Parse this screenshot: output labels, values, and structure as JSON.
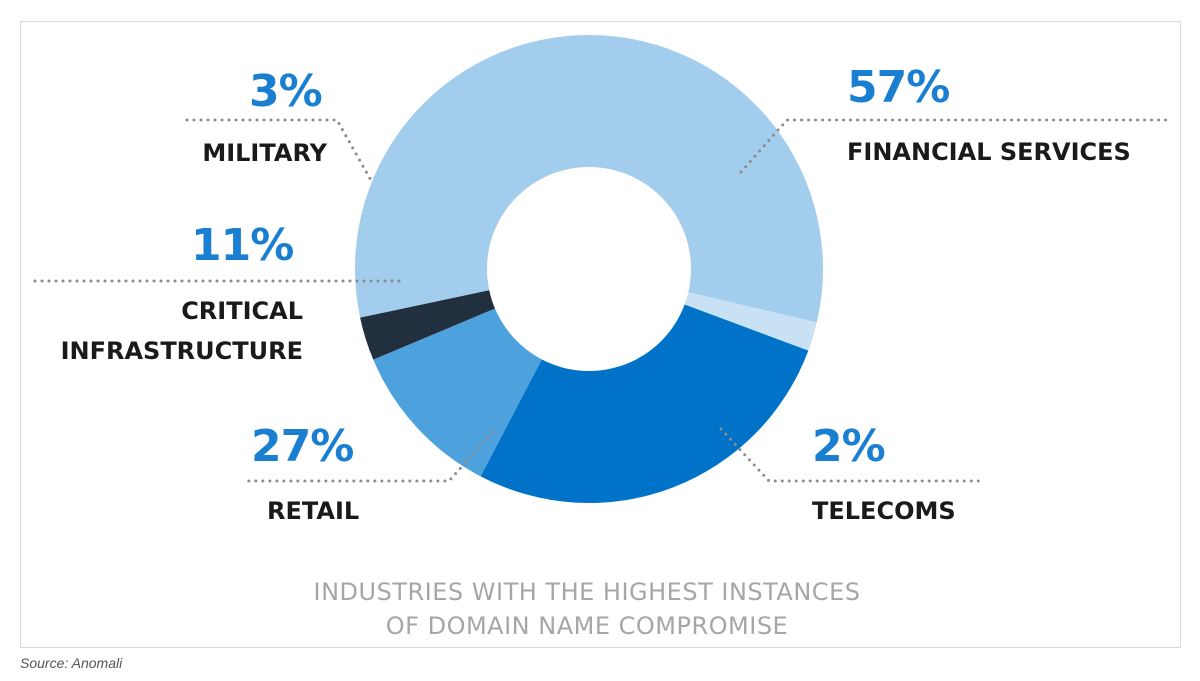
{
  "chart_data": {
    "type": "pie",
    "donut": true,
    "title_lines": [
      "INDUSTRIES WITH THE HIGHEST INSTANCES",
      "OF DOMAIN NAME COMPROMISE"
    ],
    "slices": [
      {
        "label": "FINANCIAL SERVICES",
        "label_lines": [
          "FINANCIAL SERVICES"
        ],
        "value": 57,
        "value_label": "57%",
        "color": "#a3cdec"
      },
      {
        "label": "TELECOMS",
        "label_lines": [
          "TELECOMS"
        ],
        "value": 2,
        "value_label": "2%",
        "color": "#c8e1f4"
      },
      {
        "label": "RETAIL",
        "label_lines": [
          "RETAIL"
        ],
        "value": 27,
        "value_label": "27%",
        "color": "#0073c9"
      },
      {
        "label": "CRITICAL INFRASTRUCTURE",
        "label_lines": [
          "CRITICAL",
          "INFRASTRUCTURE"
        ],
        "value": 11,
        "value_label": "11%",
        "color": "#4da1dd"
      },
      {
        "label": "MILITARY",
        "label_lines": [
          "MILITARY"
        ],
        "value": 3,
        "value_label": "3%",
        "color": "#222f3e"
      }
    ],
    "value_label_color": "#1b7fd1",
    "legend": "none",
    "source": "Source: Anomali"
  }
}
